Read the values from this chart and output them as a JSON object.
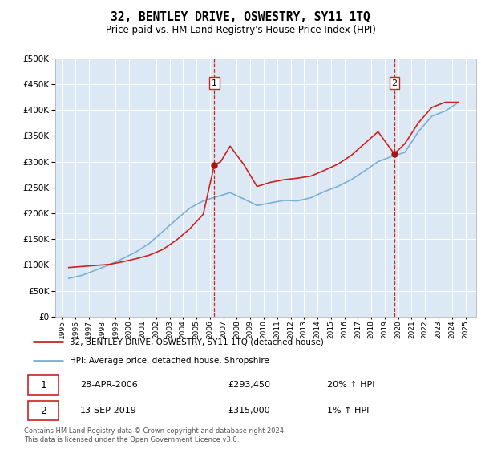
{
  "title": "32, BENTLEY DRIVE, OSWESTRY, SY11 1TQ",
  "subtitle": "Price paid vs. HM Land Registry's House Price Index (HPI)",
  "background_color": "#dce9f5",
  "plot_bg_color": "#dce9f5",
  "red_line_label": "32, BENTLEY DRIVE, OSWESTRY, SY11 1TQ (detached house)",
  "blue_line_label": "HPI: Average price, detached house, Shropshire",
  "sale1_date": "28-APR-2006",
  "sale1_price": "£293,450",
  "sale1_hpi": "20% ↑ HPI",
  "sale2_date": "13-SEP-2019",
  "sale2_price": "£315,000",
  "sale2_hpi": "1% ↑ HPI",
  "footer": "Contains HM Land Registry data © Crown copyright and database right 2024.\nThis data is licensed under the Open Government Licence v3.0.",
  "ylim": [
    0,
    500000
  ],
  "yticks": [
    0,
    50000,
    100000,
    150000,
    200000,
    250000,
    300000,
    350000,
    400000,
    450000,
    500000
  ],
  "sale1_year": 2006.32,
  "sale2_year": 2019.71,
  "sale1_value": 293450,
  "sale2_value": 315000,
  "hpi_years": [
    1995.5,
    1996.5,
    1997.5,
    1998.5,
    1999.5,
    2000.5,
    2001.5,
    2002.5,
    2003.5,
    2004.5,
    2005.5,
    2006.5,
    2007.5,
    2008.5,
    2009.5,
    2010.5,
    2011.5,
    2012.5,
    2013.5,
    2014.5,
    2015.5,
    2016.5,
    2017.5,
    2018.5,
    2019.5,
    2020.5,
    2021.5,
    2022.5,
    2023.5,
    2024.5
  ],
  "hpi_values": [
    74000,
    80000,
    90000,
    100000,
    112000,
    125000,
    142000,
    165000,
    188000,
    210000,
    224000,
    232000,
    240000,
    228000,
    215000,
    220000,
    225000,
    224000,
    230000,
    242000,
    252000,
    265000,
    282000,
    300000,
    310000,
    318000,
    358000,
    388000,
    398000,
    415000
  ],
  "red_years": [
    1995.5,
    1996.5,
    1997.5,
    1998.5,
    1999.5,
    2000.5,
    2001.5,
    2002.5,
    2003.5,
    2004.5,
    2005.5,
    2006.32,
    2006.8,
    2007.5,
    2008.5,
    2009.5,
    2010.5,
    2011.5,
    2012.5,
    2013.5,
    2014.5,
    2015.5,
    2016.5,
    2017.5,
    2018.5,
    2019.71,
    2020.5,
    2021.5,
    2022.5,
    2023.5,
    2024.5
  ],
  "red_values": [
    95000,
    97000,
    99000,
    101000,
    106000,
    112000,
    119000,
    130000,
    148000,
    170000,
    198000,
    293450,
    300000,
    330000,
    295000,
    252000,
    260000,
    265000,
    268000,
    272000,
    283000,
    295000,
    312000,
    335000,
    358000,
    315000,
    335000,
    375000,
    405000,
    415000,
    415000
  ]
}
